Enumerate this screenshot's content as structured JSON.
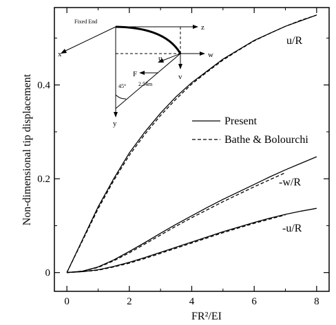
{
  "chart_data": {
    "type": "line",
    "xlabel": "FR²/EI",
    "ylabel": "Non-dimensional tip displacement",
    "xlim": [
      -0.4,
      8.4
    ],
    "ylim": [
      -0.04,
      0.565
    ],
    "xticks": [
      0,
      2,
      4,
      6,
      8
    ],
    "yticks": [
      0,
      0.2,
      0.4
    ],
    "x_tick_labels": [
      "0",
      "2",
      "4",
      "6",
      "8"
    ],
    "y_tick_labels": [
      "0",
      "0.2",
      "0.4"
    ],
    "grid": false,
    "legend": {
      "placement": "center-right",
      "entries": [
        {
          "label": "Present",
          "style": "solid"
        },
        {
          "label": "Bathe & Bolourchi",
          "style": "dashed"
        }
      ]
    },
    "series": [
      {
        "name": "u/R",
        "style": "solid",
        "x": [
          0,
          0.5,
          1,
          1.5,
          2,
          2.5,
          3,
          3.5,
          4,
          4.5,
          5,
          5.5,
          6,
          6.5,
          7,
          7.5,
          8
        ],
        "y": [
          0.0,
          0.07,
          0.14,
          0.2,
          0.255,
          0.3,
          0.34,
          0.375,
          0.405,
          0.43,
          0.455,
          0.475,
          0.495,
          0.51,
          0.525,
          0.537,
          0.549
        ]
      },
      {
        "name": "u/R",
        "style": "dashed",
        "x": [
          0,
          0.5,
          1,
          1.5,
          2,
          2.5,
          3,
          3.5,
          4,
          4.5,
          5,
          5.5,
          6,
          6.5,
          7,
          7.5,
          8
        ],
        "y": [
          0.0,
          0.068,
          0.136,
          0.196,
          0.25,
          0.295,
          0.335,
          0.37,
          0.402,
          0.428,
          0.453,
          0.474,
          0.494,
          0.51,
          0.525,
          0.538,
          0.549
        ]
      },
      {
        "name": "-w/R",
        "style": "solid",
        "x": [
          0,
          0.5,
          1,
          1.5,
          2,
          2.5,
          3,
          3.5,
          4,
          4.5,
          5,
          5.5,
          6,
          6.5,
          7,
          7.5,
          8
        ],
        "y": [
          0.0,
          0.003,
          0.012,
          0.027,
          0.045,
          0.064,
          0.084,
          0.103,
          0.121,
          0.139,
          0.156,
          0.172,
          0.188,
          0.204,
          0.219,
          0.233,
          0.247
        ]
      },
      {
        "name": "-w/R",
        "style": "dashed",
        "x": [
          0,
          0.5,
          1,
          1.5,
          2,
          2.5,
          3,
          3.5,
          4,
          4.5,
          5,
          5.5,
          6,
          6.5,
          7
        ],
        "y": [
          0.0,
          0.003,
          0.011,
          0.025,
          0.042,
          0.061,
          0.08,
          0.099,
          0.117,
          0.134,
          0.151,
          0.167,
          0.183,
          0.198,
          0.213
        ]
      },
      {
        "name": "-u/R",
        "style": "solid",
        "x": [
          0,
          0.5,
          1,
          1.5,
          2,
          2.5,
          3,
          3.5,
          4,
          4.5,
          5,
          5.5,
          6,
          6.5,
          7,
          7.5,
          8
        ],
        "y": [
          0.0,
          0.002,
          0.006,
          0.013,
          0.022,
          0.032,
          0.043,
          0.054,
          0.065,
          0.076,
          0.087,
          0.097,
          0.107,
          0.116,
          0.124,
          0.131,
          0.137
        ]
      },
      {
        "name": "-u/R",
        "style": "dashed",
        "x": [
          0,
          0.5,
          1,
          1.5,
          2,
          2.5,
          3,
          3.5,
          4,
          4.5,
          5,
          5.5,
          6,
          6.5,
          7
        ],
        "y": [
          0.0,
          0.002,
          0.005,
          0.012,
          0.02,
          0.03,
          0.041,
          0.052,
          0.063,
          0.074,
          0.085,
          0.095,
          0.105,
          0.114,
          0.123
        ]
      }
    ],
    "series_labels": [
      "u/R",
      "-w/R",
      "-u/R"
    ],
    "inset": {
      "labels": {
        "fixed_end": "Fixed End",
        "z": "z",
        "x": "x",
        "y": "y",
        "w": "w",
        "u": "u",
        "v": "v",
        "F": "F",
        "angle": "45°",
        "length": "2.54m"
      }
    }
  }
}
